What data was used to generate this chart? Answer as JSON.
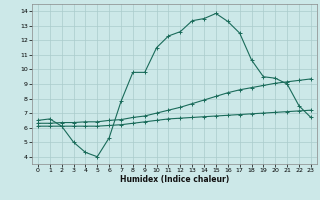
{
  "xlabel": "Humidex (Indice chaleur)",
  "bg_color": "#cce8e8",
  "grid_color": "#aacccc",
  "line_color": "#1a6b5a",
  "xlim": [
    -0.5,
    23.5
  ],
  "ylim": [
    3.5,
    14.5
  ],
  "xticks": [
    0,
    1,
    2,
    3,
    4,
    5,
    6,
    7,
    8,
    9,
    10,
    11,
    12,
    13,
    14,
    15,
    16,
    17,
    18,
    19,
    20,
    21,
    22,
    23
  ],
  "yticks": [
    4,
    5,
    6,
    7,
    8,
    9,
    10,
    11,
    12,
    13,
    14
  ],
  "line1_x": [
    0,
    1,
    2,
    3,
    4,
    5,
    6,
    7,
    8,
    9,
    10,
    11,
    12,
    13,
    14,
    15,
    16,
    17,
    18,
    19,
    20,
    21,
    22,
    23
  ],
  "line1_y": [
    6.5,
    6.6,
    6.1,
    5.0,
    4.3,
    4.0,
    5.3,
    7.8,
    9.8,
    9.8,
    11.5,
    12.3,
    12.6,
    13.35,
    13.5,
    13.85,
    13.3,
    12.5,
    10.65,
    9.5,
    9.4,
    9.0,
    7.5,
    6.7
  ],
  "line2_x": [
    0,
    1,
    2,
    3,
    4,
    5,
    6,
    7,
    8,
    9,
    10,
    11,
    12,
    13,
    14,
    15,
    16,
    17,
    18,
    19,
    20,
    21,
    22,
    23
  ],
  "line2_y": [
    6.3,
    6.3,
    6.35,
    6.35,
    6.4,
    6.4,
    6.5,
    6.55,
    6.7,
    6.8,
    7.0,
    7.2,
    7.4,
    7.65,
    7.9,
    8.15,
    8.4,
    8.6,
    8.75,
    8.9,
    9.05,
    9.15,
    9.25,
    9.35
  ],
  "line3_x": [
    0,
    1,
    2,
    3,
    4,
    5,
    6,
    7,
    8,
    9,
    10,
    11,
    12,
    13,
    14,
    15,
    16,
    17,
    18,
    19,
    20,
    21,
    22,
    23
  ],
  "line3_y": [
    6.1,
    6.1,
    6.1,
    6.1,
    6.1,
    6.1,
    6.15,
    6.2,
    6.3,
    6.4,
    6.5,
    6.6,
    6.65,
    6.7,
    6.75,
    6.8,
    6.85,
    6.9,
    6.95,
    7.0,
    7.05,
    7.1,
    7.15,
    7.2
  ]
}
